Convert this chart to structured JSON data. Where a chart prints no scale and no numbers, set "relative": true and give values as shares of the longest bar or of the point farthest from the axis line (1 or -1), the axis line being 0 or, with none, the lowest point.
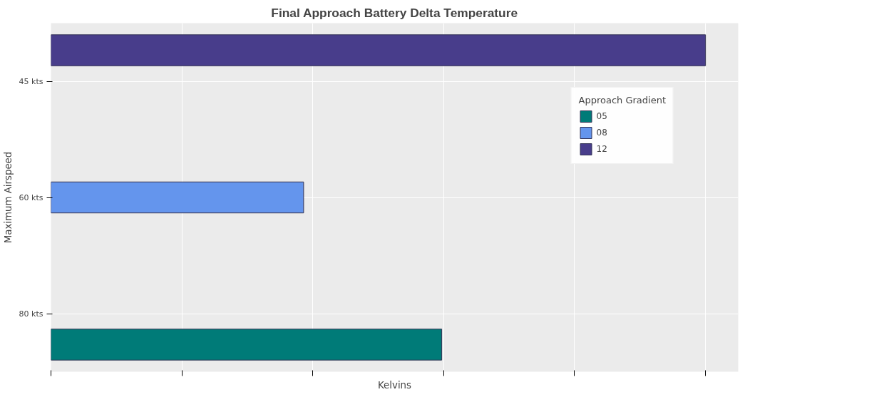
{
  "chart_data": {
    "type": "bar",
    "orientation": "horizontal",
    "relative": true,
    "title": "Final Approach Battery Delta Temperature",
    "xlabel": "Kelvins",
    "ylabel": "Maximum Airspeed",
    "legend_title": "Approach Gradient",
    "legend": "top right",
    "grid": true,
    "categories": [
      "45 kts",
      "60 kts",
      "80 kts"
    ],
    "series": [
      {
        "name": "05",
        "color": "#007b78",
        "values": [
          null,
          null,
          0.597
        ]
      },
      {
        "name": "08",
        "color": "#6495ed",
        "values": [
          null,
          0.386,
          null
        ]
      },
      {
        "name": "12",
        "color": "#483d8b",
        "values": [
          1,
          null,
          null
        ]
      }
    ]
  }
}
